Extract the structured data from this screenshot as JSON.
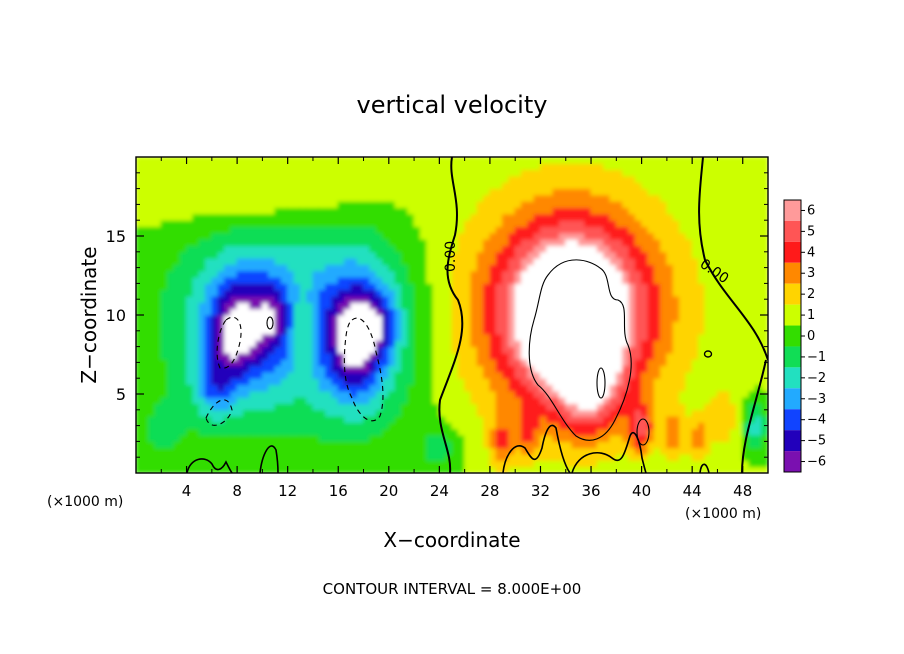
{
  "chart_data": {
    "type": "heatmap",
    "title": "vertical velocity",
    "xlabel": "X−coordinate",
    "ylabel": "Z−coordinate",
    "x_unit_left": "(×1000 m)",
    "x_unit_right": "(×1000 m)",
    "xlim": [
      0,
      50
    ],
    "ylim": [
      0,
      20
    ],
    "x_ticks": [
      4,
      8,
      12,
      16,
      20,
      24,
      28,
      32,
      36,
      40,
      44,
      48
    ],
    "y_ticks": [
      5,
      10,
      15
    ],
    "footer": "CONTOUR INTERVAL = 8.000E+00",
    "contour_labels": [
      "0.00",
      "0.00"
    ],
    "colorbar": {
      "levels": [
        "6",
        "5",
        "4",
        "3",
        "2",
        "1",
        "0",
        "−1",
        "−2",
        "−3",
        "−4",
        "−5",
        "−6"
      ],
      "colors": [
        "#ff9a9a",
        "#ff5555",
        "#ff1a1a",
        "#ff8800",
        "#ffd400",
        "#ccff00",
        "#33dd00",
        "#11dd55",
        "#22e0c0",
        "#22aaff",
        "#1144ff",
        "#2200bb",
        "#7a10b0"
      ],
      "above_max_color": "#ffffff",
      "below_min_color": "#ffffff"
    },
    "features": [
      {
        "kind": "downdraft",
        "cx": 8.5,
        "cz": 9.0,
        "value": -7
      },
      {
        "kind": "downdraft",
        "cx": 18.0,
        "cz": 8.5,
        "value": -7
      },
      {
        "kind": "updraft",
        "cx": 34.5,
        "cz": 9.5,
        "value": 7.5
      }
    ]
  }
}
